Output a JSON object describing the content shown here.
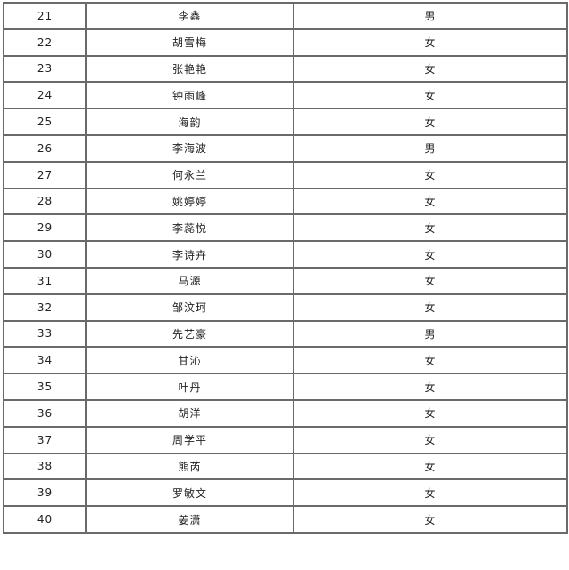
{
  "rows": [
    {
      "no": "21",
      "name": "李鑫",
      "gender": "男"
    },
    {
      "no": "22",
      "name": "胡雪梅",
      "gender": "女"
    },
    {
      "no": "23",
      "name": "张艳艳",
      "gender": "女"
    },
    {
      "no": "24",
      "name": "钟雨峰",
      "gender": "女"
    },
    {
      "no": "25",
      "name": "海韵",
      "gender": "女"
    },
    {
      "no": "26",
      "name": "李海波",
      "gender": "男"
    },
    {
      "no": "27",
      "name": "何永兰",
      "gender": "女"
    },
    {
      "no": "28",
      "name": "姚婷婷",
      "gender": "女"
    },
    {
      "no": "29",
      "name": "李蕊悦",
      "gender": "女"
    },
    {
      "no": "30",
      "name": "李诗卉",
      "gender": "女"
    },
    {
      "no": "31",
      "name": "马源",
      "gender": "女"
    },
    {
      "no": "32",
      "name": "邹汶珂",
      "gender": "女"
    },
    {
      "no": "33",
      "name": "先艺豪",
      "gender": "男"
    },
    {
      "no": "34",
      "name": "甘沁",
      "gender": "女"
    },
    {
      "no": "35",
      "name": "叶丹",
      "gender": "女"
    },
    {
      "no": "36",
      "name": "胡洋",
      "gender": "女"
    },
    {
      "no": "37",
      "name": "周学平",
      "gender": "女"
    },
    {
      "no": "38",
      "name": "熊芮",
      "gender": "女"
    },
    {
      "no": "39",
      "name": "罗敏文",
      "gender": "女"
    },
    {
      "no": "40",
      "name": "姜潇",
      "gender": "女"
    }
  ]
}
